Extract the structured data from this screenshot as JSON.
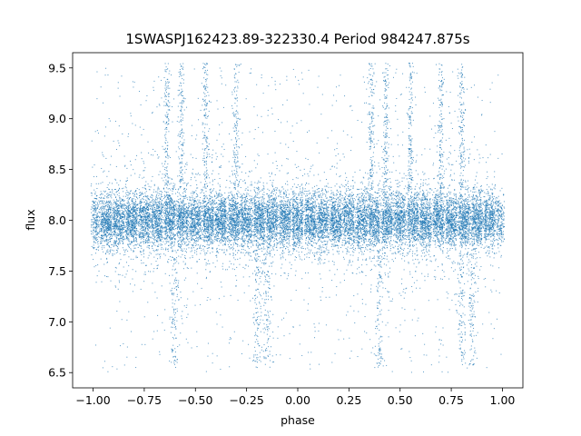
{
  "chart_data": {
    "type": "scatter",
    "title": "1SWASPJ162423.89-322330.4 Period 984247.875s",
    "xlabel": "phase",
    "ylabel": "flux",
    "xlim": [
      -1.1,
      1.1
    ],
    "ylim": [
      6.35,
      9.65
    ],
    "x_ticks": [
      -1.0,
      -0.75,
      -0.5,
      -0.25,
      0.0,
      0.25,
      0.5,
      0.75,
      1.0
    ],
    "x_tick_labels": [
      "−1.00",
      "−0.75",
      "−0.50",
      "−0.25",
      "0.00",
      "0.25",
      "0.50",
      "0.75",
      "1.00"
    ],
    "y_ticks": [
      6.5,
      7.0,
      7.5,
      8.0,
      8.5,
      9.0,
      9.5
    ],
    "y_tick_labels": [
      "6.5",
      "7.0",
      "7.5",
      "8.0",
      "8.5",
      "9.0",
      "9.5"
    ],
    "grid": false,
    "marker_color": "#1f77b4",
    "point_count": 18000,
    "flux_core": {
      "mean": 8.0,
      "spread": 0.14
    },
    "phase_range": [
      -1.0,
      1.0
    ],
    "bright_streaks_phase": [
      -0.64,
      -0.57,
      -0.45,
      -0.3,
      0.36,
      0.43,
      0.55,
      0.7,
      0.8
    ],
    "faint_streaks_phase": [
      -0.6,
      -0.2,
      -0.15,
      0.4,
      0.8,
      0.85
    ]
  }
}
